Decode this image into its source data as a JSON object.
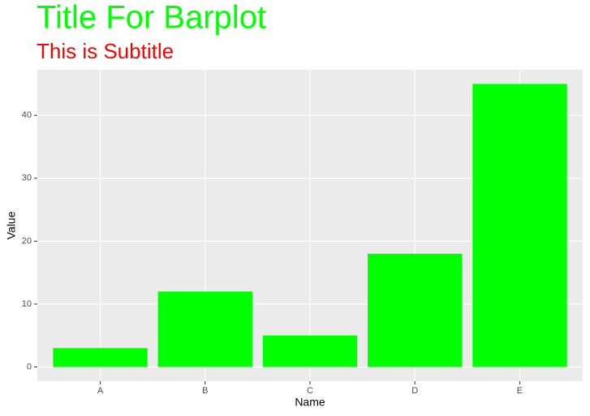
{
  "chart_data": {
    "type": "bar",
    "title": "Title For Barplot",
    "subtitle": "This is Subtitle",
    "x_label": "Name",
    "y_label": "Value",
    "categories": [
      "A",
      "B",
      "C",
      "D",
      "E"
    ],
    "values": [
      3,
      12,
      5,
      18,
      45
    ],
    "color": "#00ff00",
    "title_color": "#00ff00",
    "subtitle_color": "#ff0000",
    "ylim": [
      -2.25,
      47.25
    ],
    "yticks": [
      0,
      10,
      20,
      30,
      40
    ],
    "grid": true
  }
}
